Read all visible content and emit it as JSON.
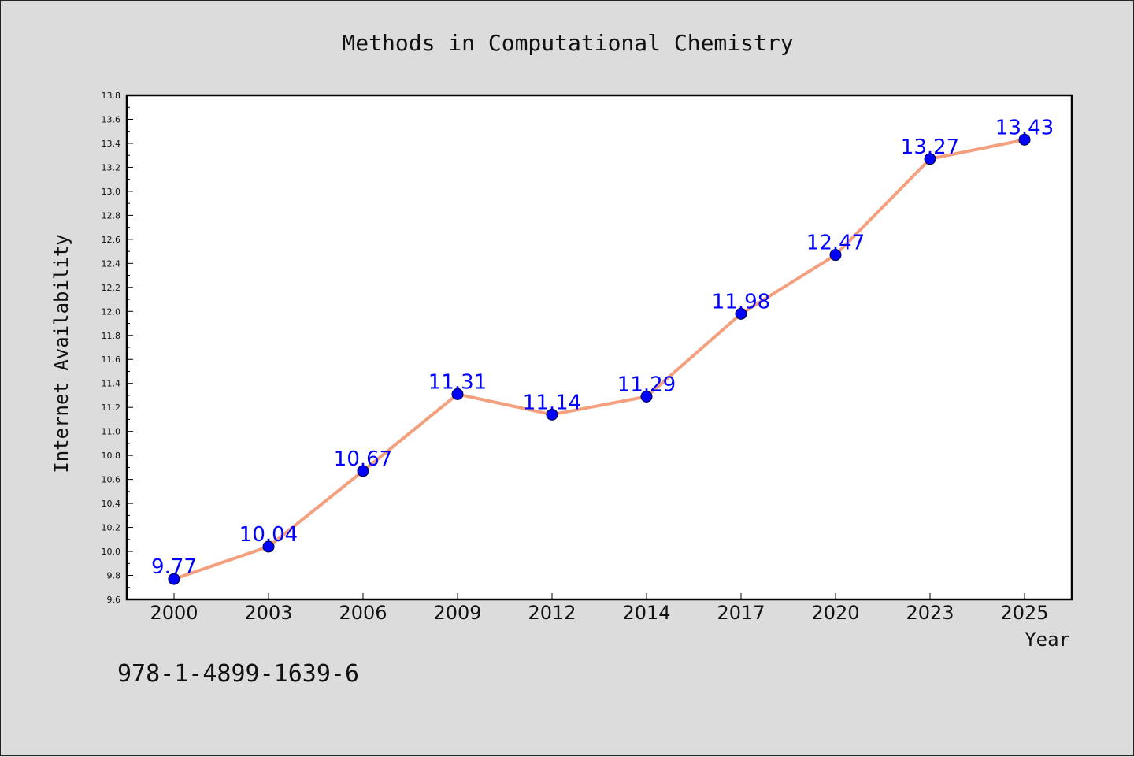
{
  "chart_data": {
    "type": "line",
    "title": "Methods in Computational Chemistry",
    "xlabel": "Year",
    "ylabel": "Internet Availability",
    "categories": [
      "2000",
      "2003",
      "2006",
      "2009",
      "2012",
      "2014",
      "2017",
      "2020",
      "2023",
      "2025"
    ],
    "series": [
      {
        "values": [
          9.77,
          10.04,
          10.67,
          11.31,
          11.14,
          11.29,
          11.98,
          12.47,
          13.27,
          13.43
        ],
        "line_color": "#f4a07e",
        "marker_color": "#0000ff",
        "label_color": "#0000ff"
      }
    ],
    "data_labels": [
      "9.77",
      "10.04",
      "10.67",
      "11.31",
      "11.14",
      "11.29",
      "11.98",
      "12.47",
      "13.27",
      "13.43"
    ],
    "ylim": [
      9.6,
      13.8
    ],
    "yticks": [
      "9.6",
      "9.8",
      "10.0",
      "10.2",
      "10.4",
      "10.6",
      "10.8",
      "11.0",
      "11.2",
      "11.4",
      "11.6",
      "11.8",
      "12.0",
      "12.2",
      "12.4",
      "12.6",
      "12.8",
      "13.0",
      "13.2",
      "13.4",
      "13.6",
      "13.8"
    ],
    "grid": false,
    "legend": "none"
  },
  "footnote": "978-1-4899-1639-6",
  "colors": {
    "background": "#dcdcdc",
    "plot_background": "#ffffff",
    "axis": "#000000"
  }
}
